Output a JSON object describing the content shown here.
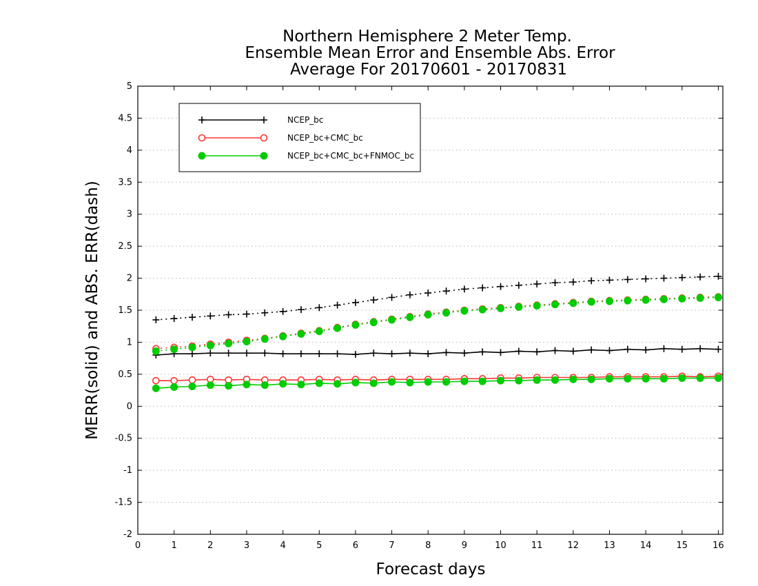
{
  "chart_data": {
    "type": "line",
    "title": [
      "Northern Hemisphere 2 Meter Temp.",
      "Ensemble Mean Error and Ensemble Abs. Error",
      "Average For 20170601 - 20170831"
    ],
    "xlabel": "Forecast days",
    "ylabel": "MERR(solid) and ABS. ERR(dash)",
    "xlim": [
      0,
      16.125
    ],
    "ylim": [
      -2,
      5
    ],
    "x_ticks": [
      0,
      1,
      2,
      3,
      4,
      5,
      6,
      7,
      8,
      9,
      10,
      11,
      12,
      13,
      14,
      15,
      16
    ],
    "x_tick_labels": [
      "0",
      "1",
      "2",
      "3",
      "4",
      "5",
      "6",
      "7",
      "8",
      "9",
      "10",
      "11",
      "12",
      "13",
      "14",
      "15",
      "16"
    ],
    "y_ticks": [
      -2,
      -1.5,
      -1,
      -0.5,
      0,
      0.5,
      1,
      1.5,
      2,
      2.5,
      3,
      3.5,
      4,
      4.5,
      5
    ],
    "y_tick_labels": [
      "-2",
      "-1.5",
      "-1",
      "-0.5",
      "0",
      "0.5",
      "1",
      "1.5",
      "2",
      "2.5",
      "3",
      "3.5",
      "4",
      "4.5",
      "5"
    ],
    "grid": "horizontal dotted",
    "legend": {
      "placement": "top-left"
    },
    "x": [
      0.5,
      1,
      1.5,
      2,
      2.5,
      3,
      3.5,
      4,
      4.5,
      5,
      5.5,
      6,
      6.5,
      7,
      7.5,
      8,
      8.5,
      9,
      9.5,
      10,
      10.5,
      11,
      11.5,
      12,
      12.5,
      13,
      13.5,
      14,
      14.5,
      15,
      15.5,
      16
    ],
    "series": [
      {
        "name": "NCEP_bc",
        "color": "#000000",
        "marker": "plus",
        "merr": [
          0.8,
          0.82,
          0.82,
          0.83,
          0.83,
          0.83,
          0.83,
          0.82,
          0.82,
          0.82,
          0.82,
          0.81,
          0.83,
          0.82,
          0.83,
          0.82,
          0.84,
          0.83,
          0.85,
          0.84,
          0.86,
          0.85,
          0.87,
          0.86,
          0.88,
          0.87,
          0.89,
          0.88,
          0.9,
          0.89,
          0.9,
          0.89
        ],
        "abs_err": [
          1.35,
          1.37,
          1.39,
          1.41,
          1.43,
          1.44,
          1.46,
          1.48,
          1.51,
          1.54,
          1.58,
          1.62,
          1.66,
          1.7,
          1.74,
          1.77,
          1.8,
          1.83,
          1.85,
          1.87,
          1.89,
          1.91,
          1.93,
          1.94,
          1.96,
          1.97,
          1.98,
          1.99,
          2.0,
          2.01,
          2.02,
          2.03
        ]
      },
      {
        "name": "NCEP_bc+CMC_bc",
        "color": "#ff3333",
        "marker": "open-circle",
        "merr": [
          0.4,
          0.4,
          0.41,
          0.42,
          0.41,
          0.42,
          0.41,
          0.41,
          0.41,
          0.42,
          0.41,
          0.42,
          0.41,
          0.42,
          0.42,
          0.42,
          0.42,
          0.43,
          0.43,
          0.44,
          0.44,
          0.45,
          0.45,
          0.45,
          0.45,
          0.46,
          0.46,
          0.46,
          0.46,
          0.47,
          0.46,
          0.47
        ],
        "abs_err": [
          0.9,
          0.92,
          0.94,
          0.97,
          1.0,
          1.03,
          1.06,
          1.1,
          1.14,
          1.18,
          1.23,
          1.28,
          1.32,
          1.36,
          1.4,
          1.44,
          1.47,
          1.5,
          1.52,
          1.54,
          1.56,
          1.58,
          1.6,
          1.62,
          1.64,
          1.65,
          1.66,
          1.67,
          1.68,
          1.69,
          1.7,
          1.71
        ]
      },
      {
        "name": "NCEP_bc+CMC_bc+FNMOC_bc",
        "color": "#00cc00",
        "marker": "filled-circle",
        "merr": [
          0.28,
          0.3,
          0.31,
          0.33,
          0.32,
          0.34,
          0.33,
          0.35,
          0.34,
          0.36,
          0.35,
          0.37,
          0.36,
          0.38,
          0.37,
          0.38,
          0.38,
          0.39,
          0.39,
          0.4,
          0.4,
          0.41,
          0.41,
          0.42,
          0.42,
          0.43,
          0.43,
          0.43,
          0.43,
          0.44,
          0.44,
          0.44
        ],
        "abs_err": [
          0.86,
          0.89,
          0.92,
          0.95,
          0.98,
          1.01,
          1.05,
          1.09,
          1.13,
          1.17,
          1.22,
          1.27,
          1.31,
          1.35,
          1.39,
          1.43,
          1.46,
          1.49,
          1.51,
          1.53,
          1.55,
          1.57,
          1.59,
          1.61,
          1.63,
          1.64,
          1.65,
          1.66,
          1.67,
          1.68,
          1.69,
          1.7
        ]
      }
    ]
  }
}
